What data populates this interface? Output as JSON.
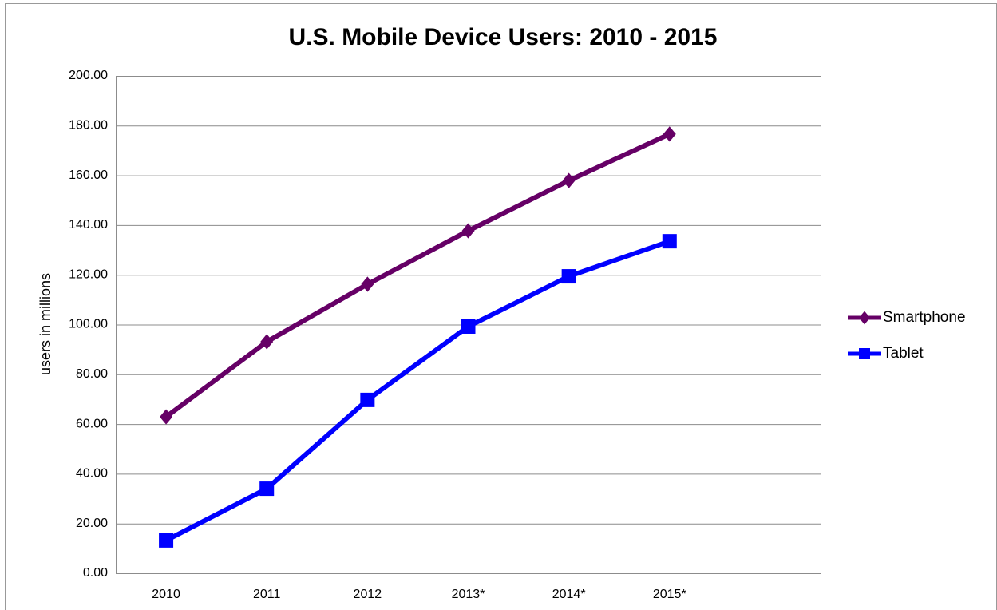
{
  "chart_data": {
    "type": "line",
    "title": "U.S. Mobile Device Users: 2010 - 2015",
    "y_label": "users in millions",
    "categories": [
      "2010",
      "2011",
      "2012",
      "2013*",
      "2014*",
      "2015*",
      null
    ],
    "series": [
      {
        "name": "Smartphone",
        "color": "#660066",
        "marker": "diamond",
        "values": [
          62.9,
          93.1,
          116.2,
          137.7,
          157.9,
          176.6,
          null
        ]
      },
      {
        "name": "Tablet",
        "color": "#0000ff",
        "marker": "square",
        "values": [
          13.2,
          34.0,
          69.7,
          99.2,
          119.4,
          133.5,
          null
        ]
      }
    ],
    "ylim": [
      0,
      200
    ],
    "yticks": [
      {
        "value": 0,
        "label": "0.00"
      },
      {
        "value": 20,
        "label": "20.00"
      },
      {
        "value": 40,
        "label": "40.00"
      },
      {
        "value": 60,
        "label": "60.00"
      },
      {
        "value": 80,
        "label": "80.00"
      },
      {
        "value": 100,
        "label": "100.00"
      },
      {
        "value": 120,
        "label": "120.00"
      },
      {
        "value": 140,
        "label": "140.00"
      },
      {
        "value": 160,
        "label": "160.00"
      },
      {
        "value": 180,
        "label": "180.00"
      },
      {
        "value": 200,
        "label": "200.00"
      }
    ],
    "grid": true,
    "legend": "right"
  }
}
